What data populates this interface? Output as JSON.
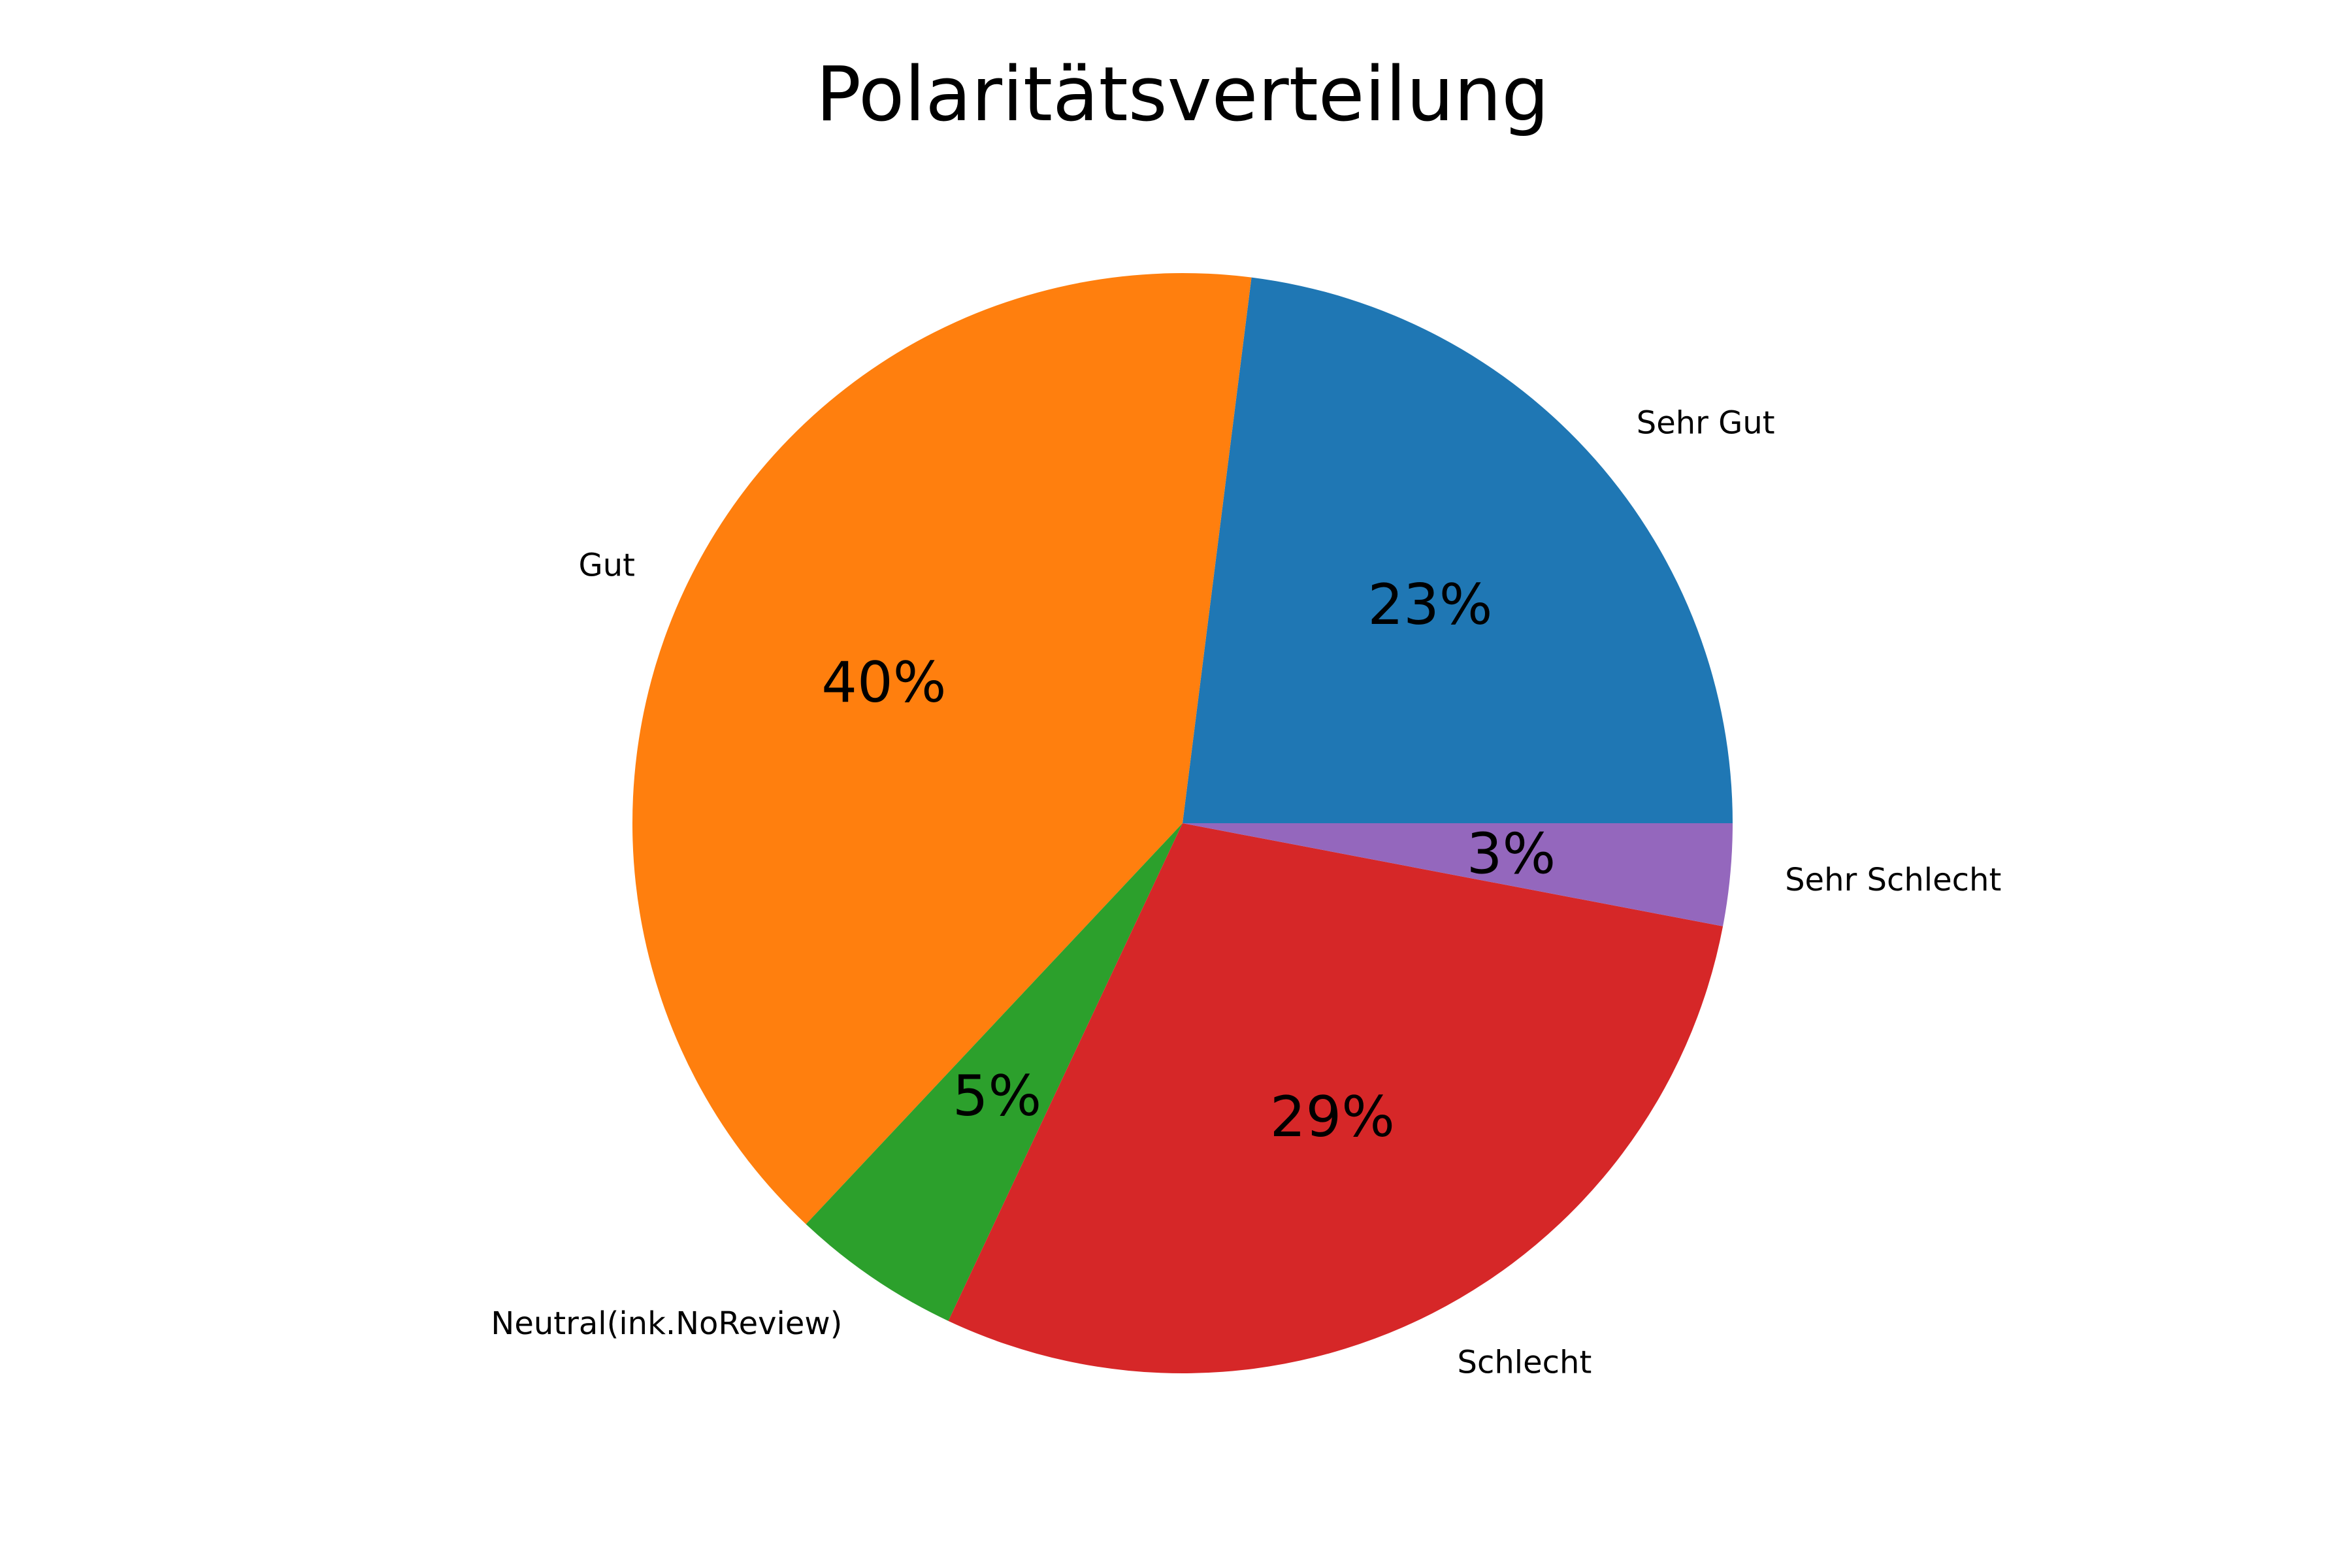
{
  "chart_data": {
    "type": "pie",
    "title": "Polaritätsverteilung",
    "slices": [
      {
        "label": "Sehr Gut",
        "value": 23,
        "pct_label": "23%",
        "color": "#1f77b4"
      },
      {
        "label": "Gut",
        "value": 40,
        "pct_label": "40%",
        "color": "#ff7f0e"
      },
      {
        "label": "Neutral(ink.NoReview)",
        "value": 5,
        "pct_label": "5%",
        "color": "#2ca02c"
      },
      {
        "label": "Schlecht",
        "value": 29,
        "pct_label": "29%",
        "color": "#d62728"
      },
      {
        "label": "Sehr Schlecht",
        "value": 3,
        "pct_label": "3%",
        "color": "#9467bd"
      }
    ]
  }
}
